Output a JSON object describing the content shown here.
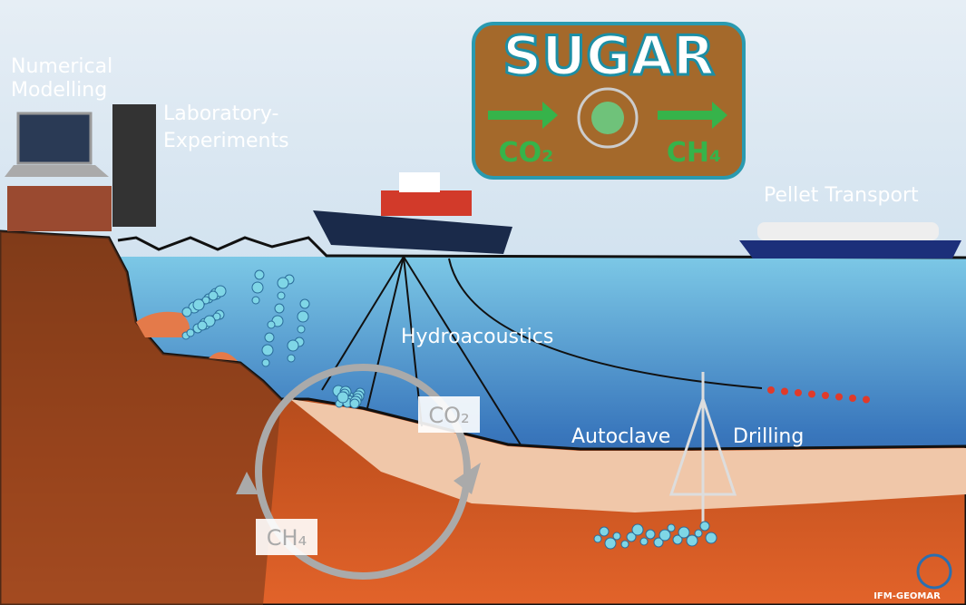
{
  "labels": {
    "numerical": [
      "Numerical",
      "Modelling"
    ],
    "laboratory": [
      "Laboratory-",
      "Experiments"
    ],
    "logo_title": "SUGAR",
    "logo_from": "CO₂",
    "logo_to": "CH₄",
    "pellet": "Pellet Transport",
    "hydroacoustics": "Hydroacoustics",
    "autoclave": "Autoclave",
    "drilling": "Drilling",
    "cycle_top": "CO₂",
    "cycle_bottom": "CH₄",
    "institute": "IFM-GEOMAR"
  }
}
